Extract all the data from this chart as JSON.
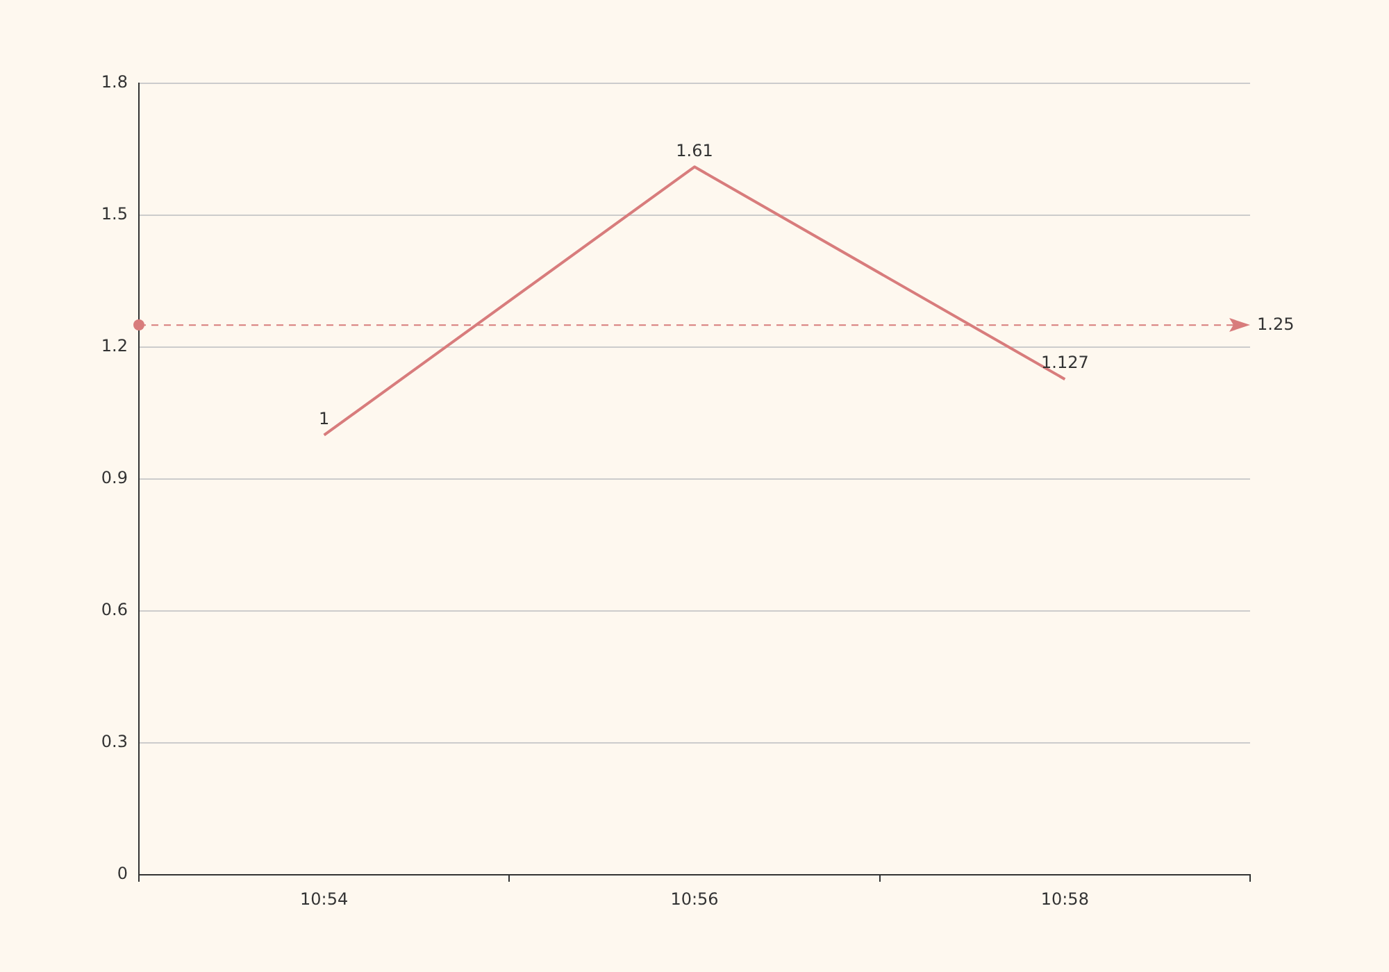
{
  "chart_data": {
    "type": "line",
    "categories": [
      "10:54",
      "10:56",
      "10:58"
    ],
    "series": [
      {
        "color": "#d87c7c",
        "values": [
          1,
          1.61,
          1.127
        ]
      }
    ],
    "ylim": [
      0,
      1.8
    ],
    "yticks": [
      0,
      0.3,
      0.6,
      0.9,
      1.2,
      1.5,
      1.8
    ],
    "grid": "y",
    "legend": false,
    "marker": "none",
    "line_style": "solid",
    "data_labels": true,
    "ref_lines": [
      {
        "axis": "y",
        "value": 1.25,
        "label": "1.25",
        "color": "#d87c7c",
        "line_style": "dashed"
      }
    ]
  }
}
